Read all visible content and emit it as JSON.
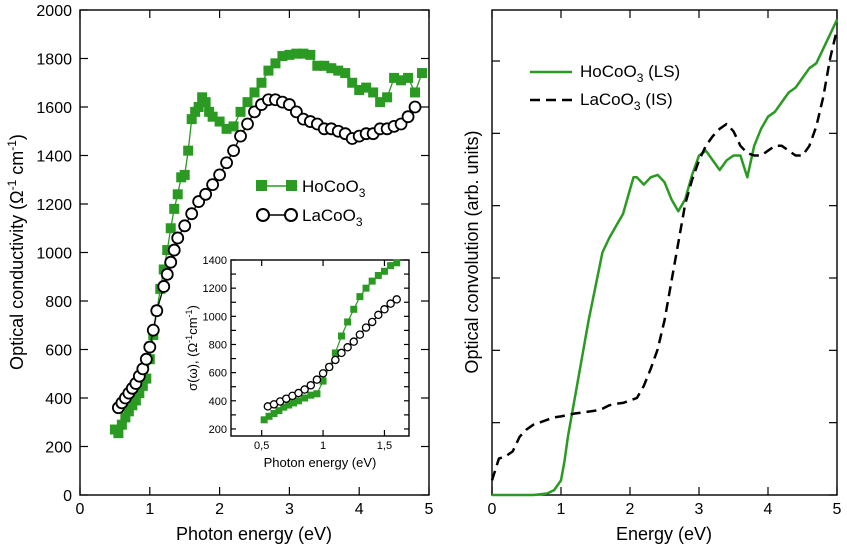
{
  "chart_data": [
    {
      "type": "scatter",
      "panel": "left",
      "xlabel": "Photon energy (eV)",
      "ylabel": "Optical conductivity (Ω⁻¹cm⁻¹)",
      "ylabel_parts": [
        "Optical conductivity (",
        "Ω",
        "-1",
        " cm",
        "-1",
        ")"
      ],
      "xlim": [
        0,
        5
      ],
      "ylim": [
        0,
        2000
      ],
      "xticks": [
        0,
        1,
        2,
        3,
        4,
        5
      ],
      "yticks": [
        0,
        200,
        400,
        600,
        800,
        1000,
        1200,
        1400,
        1600,
        1800,
        2000
      ],
      "series": [
        {
          "name": "HoCoO3",
          "label_main": "HoCoO",
          "label_sub": "3",
          "color": "#2a9a22",
          "marker": "square-filled",
          "x": [
            0.5,
            0.55,
            0.6,
            0.65,
            0.7,
            0.75,
            0.8,
            0.85,
            0.9,
            0.95,
            1.0,
            1.05,
            1.1,
            1.15,
            1.2,
            1.25,
            1.3,
            1.35,
            1.4,
            1.45,
            1.5,
            1.55,
            1.6,
            1.65,
            1.7,
            1.75,
            1.8,
            1.85,
            1.9,
            2.0,
            2.1,
            2.2,
            2.3,
            2.4,
            2.5,
            2.6,
            2.7,
            2.8,
            2.9,
            3.0,
            3.1,
            3.2,
            3.3,
            3.4,
            3.5,
            3.6,
            3.7,
            3.8,
            3.9,
            4.0,
            4.1,
            4.2,
            4.3,
            4.4,
            4.5,
            4.6,
            4.7,
            4.8,
            4.9
          ],
          "y": [
            270,
            255,
            290,
            320,
            345,
            370,
            390,
            420,
            450,
            480,
            560,
            660,
            760,
            850,
            930,
            1010,
            1100,
            1180,
            1240,
            1310,
            1320,
            1420,
            1550,
            1580,
            1600,
            1640,
            1620,
            1580,
            1560,
            1540,
            1510,
            1520,
            1580,
            1620,
            1660,
            1700,
            1750,
            1780,
            1810,
            1815,
            1820,
            1820,
            1815,
            1770,
            1770,
            1760,
            1750,
            1740,
            1700,
            1670,
            1680,
            1660,
            1620,
            1640,
            1720,
            1710,
            1720,
            1660,
            1740
          ]
        },
        {
          "name": "LaCoO3",
          "label_main": "LaCoO",
          "label_sub": "3",
          "color": "#000000",
          "marker": "circle-open",
          "x": [
            0.55,
            0.6,
            0.65,
            0.7,
            0.75,
            0.8,
            0.85,
            0.9,
            0.95,
            1.0,
            1.05,
            1.1,
            1.2,
            1.25,
            1.3,
            1.35,
            1.4,
            1.5,
            1.6,
            1.7,
            1.8,
            1.9,
            2.0,
            2.1,
            2.2,
            2.3,
            2.4,
            2.5,
            2.6,
            2.7,
            2.8,
            2.9,
            3.0,
            3.1,
            3.2,
            3.3,
            3.4,
            3.5,
            3.6,
            3.7,
            3.8,
            3.9,
            4.0,
            4.1,
            4.2,
            4.3,
            4.4,
            4.5,
            4.6,
            4.7,
            4.8
          ],
          "y": [
            360,
            380,
            400,
            420,
            440,
            460,
            490,
            520,
            560,
            610,
            680,
            760,
            860,
            910,
            960,
            1010,
            1060,
            1110,
            1160,
            1210,
            1240,
            1280,
            1320,
            1370,
            1420,
            1480,
            1530,
            1580,
            1610,
            1630,
            1630,
            1620,
            1610,
            1580,
            1550,
            1540,
            1530,
            1510,
            1510,
            1500,
            1490,
            1470,
            1480,
            1490,
            1490,
            1510,
            1510,
            1520,
            1530,
            1560,
            1600
          ]
        }
      ],
      "inset": {
        "type": "scatter",
        "xlabel": "Photon energy (eV)",
        "ylabel": "σ(ω), (Ω⁻¹cm⁻¹)",
        "ylabel_parts": [
          "σ(ω), (",
          "Ω",
          "-1",
          "cm",
          "-1",
          ")"
        ],
        "xlim": [
          0.25,
          1.7
        ],
        "ylim": [
          150,
          1400
        ],
        "xticks": [
          0.5,
          1,
          1.5
        ],
        "xtick_labels": [
          "0,5",
          "1",
          "1,5"
        ],
        "yticks": [
          200,
          300,
          400,
          500,
          600,
          700,
          800,
          900,
          1000,
          1100,
          1200,
          1300,
          1400
        ],
        "ytick_labeled": [
          200,
          400,
          600,
          800,
          1000,
          1200,
          1400
        ],
        "series": [
          {
            "name": "HoCoO3",
            "color": "#2a9a22",
            "marker": "square-filled",
            "x": [
              0.52,
              0.56,
              0.6,
              0.64,
              0.68,
              0.72,
              0.76,
              0.8,
              0.85,
              0.9,
              0.95,
              1.0,
              1.05,
              1.1,
              1.15,
              1.2,
              1.25,
              1.3,
              1.35,
              1.4,
              1.45,
              1.5,
              1.55,
              1.6
            ],
            "y": [
              265,
              290,
              310,
              330,
              355,
              370,
              385,
              400,
              420,
              440,
              450,
              540,
              640,
              740,
              860,
              960,
              1050,
              1140,
              1200,
              1250,
              1290,
              1320,
              1360,
              1380
            ]
          },
          {
            "name": "LaCoO3",
            "color": "#000000",
            "marker": "circle-open",
            "x": [
              0.55,
              0.6,
              0.65,
              0.7,
              0.75,
              0.8,
              0.85,
              0.9,
              0.95,
              1.0,
              1.05,
              1.1,
              1.15,
              1.2,
              1.25,
              1.3,
              1.35,
              1.4,
              1.45,
              1.5,
              1.55,
              1.6
            ],
            "y": [
              360,
              375,
              395,
              415,
              435,
              455,
              480,
              510,
              550,
              595,
              640,
              690,
              740,
              780,
              820,
              870,
              920,
              960,
              1010,
              1050,
              1090,
              1120
            ]
          }
        ]
      }
    },
    {
      "type": "line",
      "panel": "right",
      "xlabel": "Energy (eV)",
      "ylabel": "Optical convolution (arb. units)",
      "xlim": [
        0,
        5
      ],
      "ylim": [
        0,
        1
      ],
      "xticks": [
        0,
        1,
        2,
        3,
        4,
        5
      ],
      "ytick_count": 7,
      "series": [
        {
          "name": "HoCoO3 (LS)",
          "label_main": "HoCoO",
          "label_sub": "3",
          "label_tail": " (LS)",
          "color": "#2a9a22",
          "style": "solid",
          "x": [
            0,
            0.6,
            0.8,
            0.9,
            1.0,
            1.05,
            1.1,
            1.2,
            1.3,
            1.4,
            1.5,
            1.6,
            1.7,
            1.8,
            1.9,
            2.0,
            2.05,
            2.1,
            2.2,
            2.3,
            2.4,
            2.5,
            2.6,
            2.7,
            2.8,
            2.9,
            3.0,
            3.1,
            3.2,
            3.3,
            3.4,
            3.5,
            3.6,
            3.7,
            3.8,
            3.9,
            4.0,
            4.1,
            4.2,
            4.3,
            4.4,
            4.5,
            4.6,
            4.7,
            4.8,
            4.9,
            5.0
          ],
          "y": [
            0,
            0,
            0.003,
            0.01,
            0.03,
            0.07,
            0.12,
            0.2,
            0.28,
            0.36,
            0.43,
            0.5,
            0.53,
            0.555,
            0.58,
            0.63,
            0.655,
            0.655,
            0.64,
            0.655,
            0.66,
            0.645,
            0.61,
            0.585,
            0.61,
            0.66,
            0.7,
            0.71,
            0.69,
            0.67,
            0.69,
            0.7,
            0.7,
            0.655,
            0.72,
            0.755,
            0.78,
            0.79,
            0.81,
            0.83,
            0.84,
            0.86,
            0.88,
            0.89,
            0.92,
            0.95,
            0.98
          ]
        },
        {
          "name": "LaCoO3 (IS)",
          "label_main": "LaCoO",
          "label_sub": "3",
          "label_tail": " (IS)",
          "color": "#000000",
          "style": "dashed",
          "x": [
            0,
            0.1,
            0.2,
            0.3,
            0.4,
            0.5,
            0.6,
            0.7,
            0.8,
            0.9,
            1.0,
            1.1,
            1.2,
            1.3,
            1.4,
            1.5,
            1.6,
            1.7,
            1.8,
            1.9,
            2.0,
            2.1,
            2.2,
            2.3,
            2.4,
            2.5,
            2.6,
            2.7,
            2.8,
            2.9,
            3.0,
            3.1,
            3.2,
            3.3,
            3.4,
            3.5,
            3.6,
            3.7,
            3.8,
            3.9,
            4.0,
            4.1,
            4.2,
            4.3,
            4.4,
            4.5,
            4.6,
            4.7,
            4.8,
            4.9,
            5.0
          ],
          "y": [
            0.03,
            0.075,
            0.08,
            0.09,
            0.12,
            0.135,
            0.145,
            0.15,
            0.155,
            0.16,
            0.162,
            0.165,
            0.168,
            0.17,
            0.172,
            0.174,
            0.178,
            0.185,
            0.188,
            0.19,
            0.195,
            0.2,
            0.225,
            0.26,
            0.3,
            0.36,
            0.44,
            0.52,
            0.6,
            0.65,
            0.69,
            0.72,
            0.74,
            0.755,
            0.765,
            0.75,
            0.72,
            0.705,
            0.7,
            0.7,
            0.71,
            0.72,
            0.72,
            0.71,
            0.7,
            0.7,
            0.72,
            0.76,
            0.82,
            0.9,
            0.96
          ]
        }
      ]
    }
  ]
}
